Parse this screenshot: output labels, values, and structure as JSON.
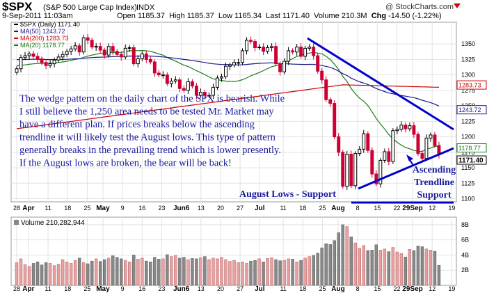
{
  "header": {
    "symbol": "$SPX",
    "name": "(S&P 500 Large Cap Index)",
    "exchange": "INDX",
    "credit": "@ StockCharts.com",
    "date": "9-Sep-2011 11:03am",
    "open_label": "Open",
    "open": "1185.37",
    "high_label": "High",
    "high": "1185.37",
    "low_label": "Low",
    "low": "1165.34",
    "last_label": "Last",
    "last": "1171.40",
    "volume_label": "Volume",
    "volume": "210.3M",
    "chg_label": "Chg",
    "chg": "-14.50 (-1.22%)"
  },
  "colors": {
    "up": "#000000",
    "down": "#cc0033",
    "ma50": "#1a1a8c",
    "ma200": "#cc0000",
    "ma20": "#1a7a1a",
    "trendline": "#0000cc",
    "annotation": "#1a1aa0",
    "volume_up": "#e8a0a0",
    "volume_down": "#888888"
  },
  "chart_data": [
    {
      "type": "candlestick",
      "legend": [
        {
          "label": "$SPX (Daily) 1171.40",
          "color": "#000000"
        },
        {
          "label": "MA(50) 1243.72",
          "color": "#1a1a8c"
        },
        {
          "label": "MA(200) 1283.73",
          "color": "#cc0000"
        },
        {
          "label": "MA(20) 1178.77",
          "color": "#1a7a1a"
        }
      ],
      "ylim": [
        1095,
        1385
      ],
      "y_ticks": [
        1100,
        1125,
        1150,
        1175,
        1200,
        1225,
        1250,
        1275,
        1300,
        1325,
        1350
      ],
      "x_ticks": [
        "28",
        "Apr",
        "11",
        "18",
        "25",
        "May",
        "9",
        "16",
        "23",
        "Jun6",
        "13",
        "20",
        "27",
        "Jul",
        "11",
        "18",
        "25",
        "Aug",
        "8",
        "15",
        "22",
        "29Sep",
        "12",
        "19"
      ],
      "price_flags": [
        {
          "label": "1283.73",
          "value": 1283.73
        },
        {
          "label": "1243.72",
          "value": 1243.72
        },
        {
          "label": "1178.77",
          "value": 1178.77
        },
        {
          "label": "1171.40",
          "value": 1171.4
        }
      ],
      "close": [
        1310,
        1328,
        1331,
        1334,
        1330,
        1326,
        1320,
        1315,
        1318,
        1324,
        1329,
        1333,
        1338,
        1342,
        1347,
        1337,
        1360,
        1356,
        1345,
        1346,
        1340,
        1332,
        1346,
        1338,
        1333,
        1329,
        1343,
        1344,
        1318,
        1326,
        1334,
        1325,
        1321,
        1303,
        1300,
        1300,
        1286,
        1290,
        1292,
        1278,
        1275,
        1289,
        1282,
        1267,
        1272,
        1267,
        1267,
        1280,
        1295,
        1297,
        1314,
        1316,
        1320,
        1320,
        1339,
        1356,
        1354,
        1344,
        1345,
        1338,
        1344,
        1346,
        1318,
        1305,
        1322,
        1339,
        1337,
        1345,
        1330,
        1343,
        1345,
        1331,
        1306,
        1292,
        1260,
        1254,
        1200,
        1175,
        1120,
        1172,
        1121,
        1173,
        1180,
        1205,
        1178,
        1140,
        1124,
        1162,
        1176,
        1160,
        1210,
        1212,
        1219,
        1213,
        1218,
        1204,
        1173,
        1165,
        1198,
        1203,
        1186,
        1171
      ],
      "volume": [
        60,
        70,
        55,
        50,
        58,
        62,
        54,
        60,
        58,
        52,
        56,
        68,
        62,
        58,
        66,
        72,
        60,
        57,
        64,
        70,
        63,
        68,
        72,
        78,
        74,
        70,
        66,
        62,
        80,
        69,
        72,
        64,
        62,
        74,
        69,
        70,
        81,
        76,
        79,
        72,
        74,
        68,
        71,
        70,
        73,
        76,
        68,
        72,
        70,
        74,
        68,
        63,
        66,
        60,
        62,
        58,
        64,
        66,
        70,
        62,
        71,
        73,
        68,
        65,
        66,
        70,
        69,
        62,
        66,
        72,
        76,
        79,
        85,
        99,
        110,
        108,
        118,
        139,
        160,
        155,
        128,
        112,
        98,
        105,
        92,
        93,
        107,
        93,
        96,
        89,
        100,
        88,
        84,
        75,
        95,
        92,
        104,
        102,
        96,
        93,
        90,
        53
      ],
      "volume_label": "Volume 210,282,944",
      "volume_ylim": [
        0,
        9
      ],
      "volume_ticks": [
        {
          "label": "2B",
          "value": 2
        },
        {
          "label": "4B",
          "value": 4
        },
        {
          "label": "6B",
          "value": 6
        },
        {
          "label": "8B",
          "value": 8
        }
      ]
    }
  ],
  "annotations": {
    "main_text": [
      "The wedge pattern on the daily chart of the SPX is bearish. While",
      "I still believe the 1,250 area needs to be tested Mr. Market may",
      "have a different plan. If prices breaks below the ascending",
      "trendline it will likely test the August lows. This type of pattern",
      "generally breaks in the prevailing trend which is lower presently.",
      "If the August lows are broken, the bear will be back!"
    ],
    "support_label": "August Lows - Support",
    "ascending_lines": [
      "Ascending",
      "Trendline",
      "Support"
    ]
  }
}
